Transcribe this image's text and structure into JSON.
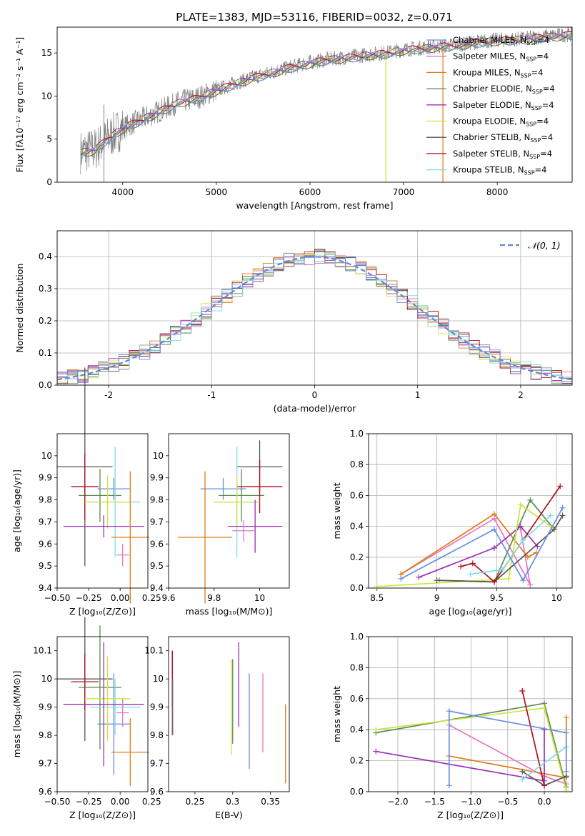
{
  "figure_title": "PLATE=1383, MJD=53116, FIBERID=0032, z=0.071",
  "series_colors": [
    "#e377c2",
    "#e07b1a",
    "#5b8a55",
    "#9b2fb5",
    "#cde43a",
    "#555555",
    "#b00d1e",
    "#80dbe8",
    "#6a8ee0"
  ],
  "chart_data": [
    {
      "type": "line",
      "xlabel": "wavelength [Angstrom, rest frame]",
      "ylabel": "Flux [fλ10⁻¹⁷ erg cm⁻² s⁻¹ A⁻¹]",
      "xlim": [
        3300,
        8800
      ],
      "ylim": [
        0,
        18
      ],
      "xticks": [
        4000,
        5000,
        6000,
        7000,
        8000
      ],
      "yticks": [
        0,
        5,
        10,
        15
      ],
      "observed_spectrum": {
        "color": "#808080",
        "x": [
          3550,
          3700,
          3850,
          4000,
          4200,
          4400,
          4600,
          4800,
          5000,
          5200,
          5400,
          5600,
          5800,
          6000,
          6200,
          6400,
          6600,
          6800,
          7000,
          7200,
          7400,
          7600,
          7800,
          8000,
          8200,
          8400,
          8600,
          8800
        ],
        "y": [
          3.5,
          3.8,
          5.2,
          6.3,
          7.3,
          8.3,
          9.3,
          9.8,
          10.7,
          11.5,
          12.2,
          12.8,
          13.4,
          13.9,
          14.3,
          14.5,
          14.8,
          15.0,
          15.4,
          15.6,
          15.8,
          16.0,
          16.3,
          16.5,
          16.6,
          16.8,
          17.0,
          17.2
        ]
      },
      "legend": [
        "Chabrier MILES, N_SSP=4",
        "Salpeter MILES, N_SSP=4",
        "Kroupa MILES, N_SSP=4",
        "Chabrier ELODIE, N_SSP=4",
        "Salpeter ELODIE, N_SSP=4",
        "Kroupa ELODIE, N_SSP=4",
        "Chabrier STELIB, N_SSP=4",
        "Salpeter STELIB, N_SSP=4",
        "Kroupa STELIB, N_SSP=4"
      ],
      "legend_placement": "right"
    },
    {
      "type": "histogram",
      "xlabel": "(data-model)/error",
      "ylabel": "Normed distribution",
      "xlim": [
        -2.5,
        2.5
      ],
      "ylim": [
        0,
        0.48
      ],
      "xticks": [
        -2,
        -1,
        0,
        1,
        2
      ],
      "yticks": [
        0.0,
        0.1,
        0.2,
        0.3,
        0.4
      ],
      "legend": [
        "𝒩(0, 1)"
      ],
      "legend_placement": "top-right",
      "reference_curve": "normal(0,1)",
      "grid": true
    },
    {
      "type": "scatter_errorbar",
      "xlabel": "Z [log₁₀(Z/Z⊙)]",
      "ylabel": "age  [log₁₀(age/yr)]",
      "xlim": [
        -0.5,
        0.22
      ],
      "ylim": [
        9.4,
        10.1
      ],
      "xticks": [
        -0.5,
        -0.25,
        0.0,
        0.25
      ],
      "xticklabels": [
        "−0.50",
        "−0.25",
        "0.00",
        "0.25"
      ],
      "yticks": [
        9.4,
        9.5,
        9.6,
        9.7,
        9.8,
        9.9,
        10.0
      ],
      "points": [
        {
          "x": -0.28,
          "y": 9.95,
          "xerr": 0.22,
          "yerr": 0.45,
          "c": 5
        },
        {
          "x": -0.05,
          "y": 9.85,
          "xerr": 0.13,
          "yerr": 0.05,
          "c": 8
        },
        {
          "x": -0.16,
          "y": 9.82,
          "xerr": 0.17,
          "yerr": 0.12,
          "c": 2
        },
        {
          "x": -0.28,
          "y": 9.86,
          "xerr": 0.11,
          "yerr": 0.15,
          "c": 6
        },
        {
          "x": -0.04,
          "y": 9.79,
          "xerr": 0.2,
          "yerr": 0.25,
          "c": 7
        },
        {
          "x": -0.1,
          "y": 9.79,
          "xerr": 0.18,
          "yerr": 0.12,
          "c": 4
        },
        {
          "x": -0.13,
          "y": 9.68,
          "xerr": 0.32,
          "yerr": 0.05,
          "c": 3
        },
        {
          "x": 0.08,
          "y": 9.63,
          "xerr": 0.15,
          "yerr": 0.3,
          "c": 1
        },
        {
          "x": 0.02,
          "y": 9.55,
          "xerr": 0.05,
          "yerr": 0.05,
          "c": 0
        }
      ]
    },
    {
      "type": "scatter_errorbar",
      "xlabel": "mass [log₁₀(M/M⊙)]",
      "xlim": [
        9.6,
        10.13
      ],
      "ylim": [
        9.4,
        10.1
      ],
      "xticks": [
        9.6,
        9.8,
        10.0
      ],
      "yticks": [
        9.4,
        9.5,
        9.6,
        9.7,
        9.8,
        9.9,
        10.0
      ],
      "points": [
        {
          "x": 10.0,
          "y": 9.95,
          "xerr": 0.1,
          "yerr": 0.12,
          "c": 5
        },
        {
          "x": 9.84,
          "y": 9.85,
          "xerr": 0.1,
          "yerr": 0.05,
          "c": 8
        },
        {
          "x": 9.92,
          "y": 9.82,
          "xerr": 0.1,
          "yerr": 0.12,
          "c": 2
        },
        {
          "x": 10.0,
          "y": 9.86,
          "xerr": 0.1,
          "yerr": 0.12,
          "c": 6
        },
        {
          "x": 9.9,
          "y": 9.79,
          "xerr": 0.1,
          "yerr": 0.25,
          "c": 7
        },
        {
          "x": 9.9,
          "y": 9.79,
          "xerr": 0.1,
          "yerr": 0.12,
          "c": 4
        },
        {
          "x": 9.98,
          "y": 9.68,
          "xerr": 0.12,
          "yerr": 0.12,
          "c": 3
        },
        {
          "x": 9.76,
          "y": 9.63,
          "xerr": 0.12,
          "yerr": 0.3,
          "c": 1
        },
        {
          "x": 9.93,
          "y": 9.66,
          "xerr": 0.05,
          "yerr": 0.05,
          "c": 0
        }
      ]
    },
    {
      "type": "line",
      "xlabel": "age  [log₁₀(age/yr)]",
      "ylabel": "mass weight",
      "xlim": [
        8.43,
        10.13
      ],
      "ylim": [
        0,
        1.0
      ],
      "xticks": [
        8.5,
        9.0,
        9.5,
        10.0
      ],
      "yticks": [
        0.0,
        0.2,
        0.4,
        0.6,
        0.8,
        1.0
      ],
      "grid": true,
      "series": [
        {
          "c": 0,
          "x": [
            8.7,
            9.48,
            9.78,
            9.7
          ],
          "y": [
            0.09,
            0.45,
            0.02,
            0.38
          ]
        },
        {
          "c": 1,
          "x": [
            8.7,
            9.48,
            9.76,
            9.83
          ],
          "y": [
            0.09,
            0.48,
            0.2,
            0.23
          ]
        },
        {
          "c": 2,
          "x": [
            9.02,
            9.48,
            9.78,
            9.97
          ],
          "y": [
            0.05,
            0.04,
            0.57,
            0.39
          ]
        },
        {
          "c": 3,
          "x": [
            8.85,
            9.48,
            9.7,
            9.84
          ],
          "y": [
            0.07,
            0.26,
            0.4,
            0.27
          ]
        },
        {
          "c": 4,
          "x": [
            8.5,
            9.6,
            9.7,
            9.97
          ],
          "y": [
            0.01,
            0.06,
            0.54,
            0.39
          ]
        },
        {
          "c": 5,
          "x": [
            9.0,
            9.48,
            9.98,
            10.05
          ],
          "y": [
            0.05,
            0.04,
            0.38,
            0.47
          ]
        },
        {
          "c": 6,
          "x": [
            9.2,
            9.3,
            9.48,
            10.03
          ],
          "y": [
            0.14,
            0.16,
            0.04,
            0.66
          ]
        },
        {
          "c": 7,
          "x": [
            9.28,
            9.55,
            9.72,
            9.95
          ],
          "y": [
            0.09,
            0.12,
            0.31,
            0.47
          ]
        },
        {
          "c": 8,
          "x": [
            8.7,
            9.48,
            9.72,
            10.05
          ],
          "y": [
            0.06,
            0.38,
            0.05,
            0.52
          ]
        }
      ]
    },
    {
      "type": "scatter_errorbar",
      "xlabel": "Z [log₁₀(Z/Z⊙)]",
      "ylabel": "mass [log₁₀(M/M⊙)]",
      "xlim": [
        -0.5,
        0.22
      ],
      "ylim": [
        9.6,
        10.15
      ],
      "xticks": [
        -0.5,
        -0.25,
        0.0,
        0.25
      ],
      "xticklabels": [
        "−0.50",
        "−0.25",
        "0.00",
        "0.25"
      ],
      "yticks": [
        9.6,
        9.7,
        9.8,
        9.9,
        10.0,
        10.1
      ],
      "points": [
        {
          "x": -0.28,
          "y": 10.0,
          "xerr": 0.22,
          "yerr": 0.22,
          "c": 5
        },
        {
          "x": -0.05,
          "y": 9.84,
          "xerr": 0.13,
          "yerr": 0.18,
          "c": 8
        },
        {
          "x": -0.16,
          "y": 9.97,
          "xerr": 0.17,
          "yerr": 0.22,
          "c": 2
        },
        {
          "x": -0.28,
          "y": 9.99,
          "xerr": 0.11,
          "yerr": 0.1,
          "c": 6
        },
        {
          "x": -0.04,
          "y": 9.9,
          "xerr": 0.2,
          "yerr": 0.1,
          "c": 7
        },
        {
          "x": -0.1,
          "y": 9.93,
          "xerr": 0.18,
          "yerr": 0.15,
          "c": 4
        },
        {
          "x": -0.13,
          "y": 9.91,
          "xerr": 0.32,
          "yerr": 0.22,
          "c": 3
        },
        {
          "x": 0.08,
          "y": 9.74,
          "xerr": 0.15,
          "yerr": 0.12,
          "c": 1
        },
        {
          "x": 0.02,
          "y": 9.88,
          "xerr": 0.05,
          "yerr": 0.05,
          "c": 0
        }
      ]
    },
    {
      "type": "scatter_errorbar",
      "xlabel": "E(B-V)",
      "xlim": [
        0.215,
        0.375
      ],
      "ylim": [
        9.6,
        10.15
      ],
      "xticks": [
        0.25,
        0.3,
        0.35
      ],
      "yticks": [
        9.6,
        9.7,
        9.8,
        9.9,
        10.0,
        10.1
      ],
      "points": [
        {
          "x": 0.22,
          "y": 10.0,
          "yerr": 0.1,
          "c": 5
        },
        {
          "x": 0.22,
          "y": 9.95,
          "yerr": 0.15,
          "c": 6
        },
        {
          "x": 0.221,
          "y": 9.9,
          "yerr": 0.1,
          "c": 7
        },
        {
          "x": 0.298,
          "y": 9.9,
          "yerr": 0.17,
          "c": 4
        },
        {
          "x": 0.3,
          "y": 9.92,
          "yerr": 0.15,
          "c": 2
        },
        {
          "x": 0.308,
          "y": 9.98,
          "yerr": 0.15,
          "c": 3
        },
        {
          "x": 0.322,
          "y": 9.85,
          "yerr": 0.17,
          "c": 8
        },
        {
          "x": 0.34,
          "y": 9.88,
          "yerr": 0.14,
          "c": 0
        },
        {
          "x": 0.37,
          "y": 9.77,
          "yerr": 0.14,
          "c": 1
        }
      ]
    },
    {
      "type": "line",
      "xlabel": "Z [log₁₀(Z/Z⊙)]",
      "ylabel": "mass weight",
      "xlim": [
        -2.4,
        0.38
      ],
      "ylim": [
        0,
        1.0
      ],
      "xticks": [
        -2.0,
        -1.5,
        -1.0,
        -0.5,
        0.0
      ],
      "xticklabels": [
        "−2.0",
        "−1.5",
        "−1.0",
        "−0.5",
        "0.0"
      ],
      "yticks": [
        0.0,
        0.2,
        0.4,
        0.6,
        0.8,
        1.0
      ],
      "grid": true,
      "series": [
        {
          "c": 0,
          "x": [
            -1.3,
            0.0,
            0.3
          ],
          "y": [
            0.43,
            0.1,
            0.05
          ]
        },
        {
          "c": 1,
          "x": [
            -1.3,
            0.3,
            0.3
          ],
          "y": [
            0.23,
            0.09,
            0.48
          ]
        },
        {
          "c": 2,
          "x": [
            -2.3,
            0.0,
            0.3
          ],
          "y": [
            0.38,
            0.57,
            0.03
          ]
        },
        {
          "c": 3,
          "x": [
            -2.3,
            0.0,
            0.0
          ],
          "y": [
            0.26,
            0.07,
            0.4
          ]
        },
        {
          "c": 4,
          "x": [
            -2.3,
            0.0,
            0.3
          ],
          "y": [
            0.4,
            0.54,
            0.01
          ]
        },
        {
          "c": 5,
          "x": [
            -0.3,
            0.0,
            0.3
          ],
          "y": [
            0.13,
            0.04,
            0.1
          ]
        },
        {
          "c": 6,
          "x": [
            -0.3,
            0.0
          ],
          "y": [
            0.65,
            0.04
          ]
        },
        {
          "c": 7,
          "x": [
            -0.3,
            0.3
          ],
          "y": [
            0.08,
            0.29
          ]
        },
        {
          "c": 8,
          "x": [
            -1.3,
            -1.3,
            0.3,
            0.3
          ],
          "y": [
            0.04,
            0.52,
            0.38,
            0.13
          ]
        }
      ]
    }
  ]
}
